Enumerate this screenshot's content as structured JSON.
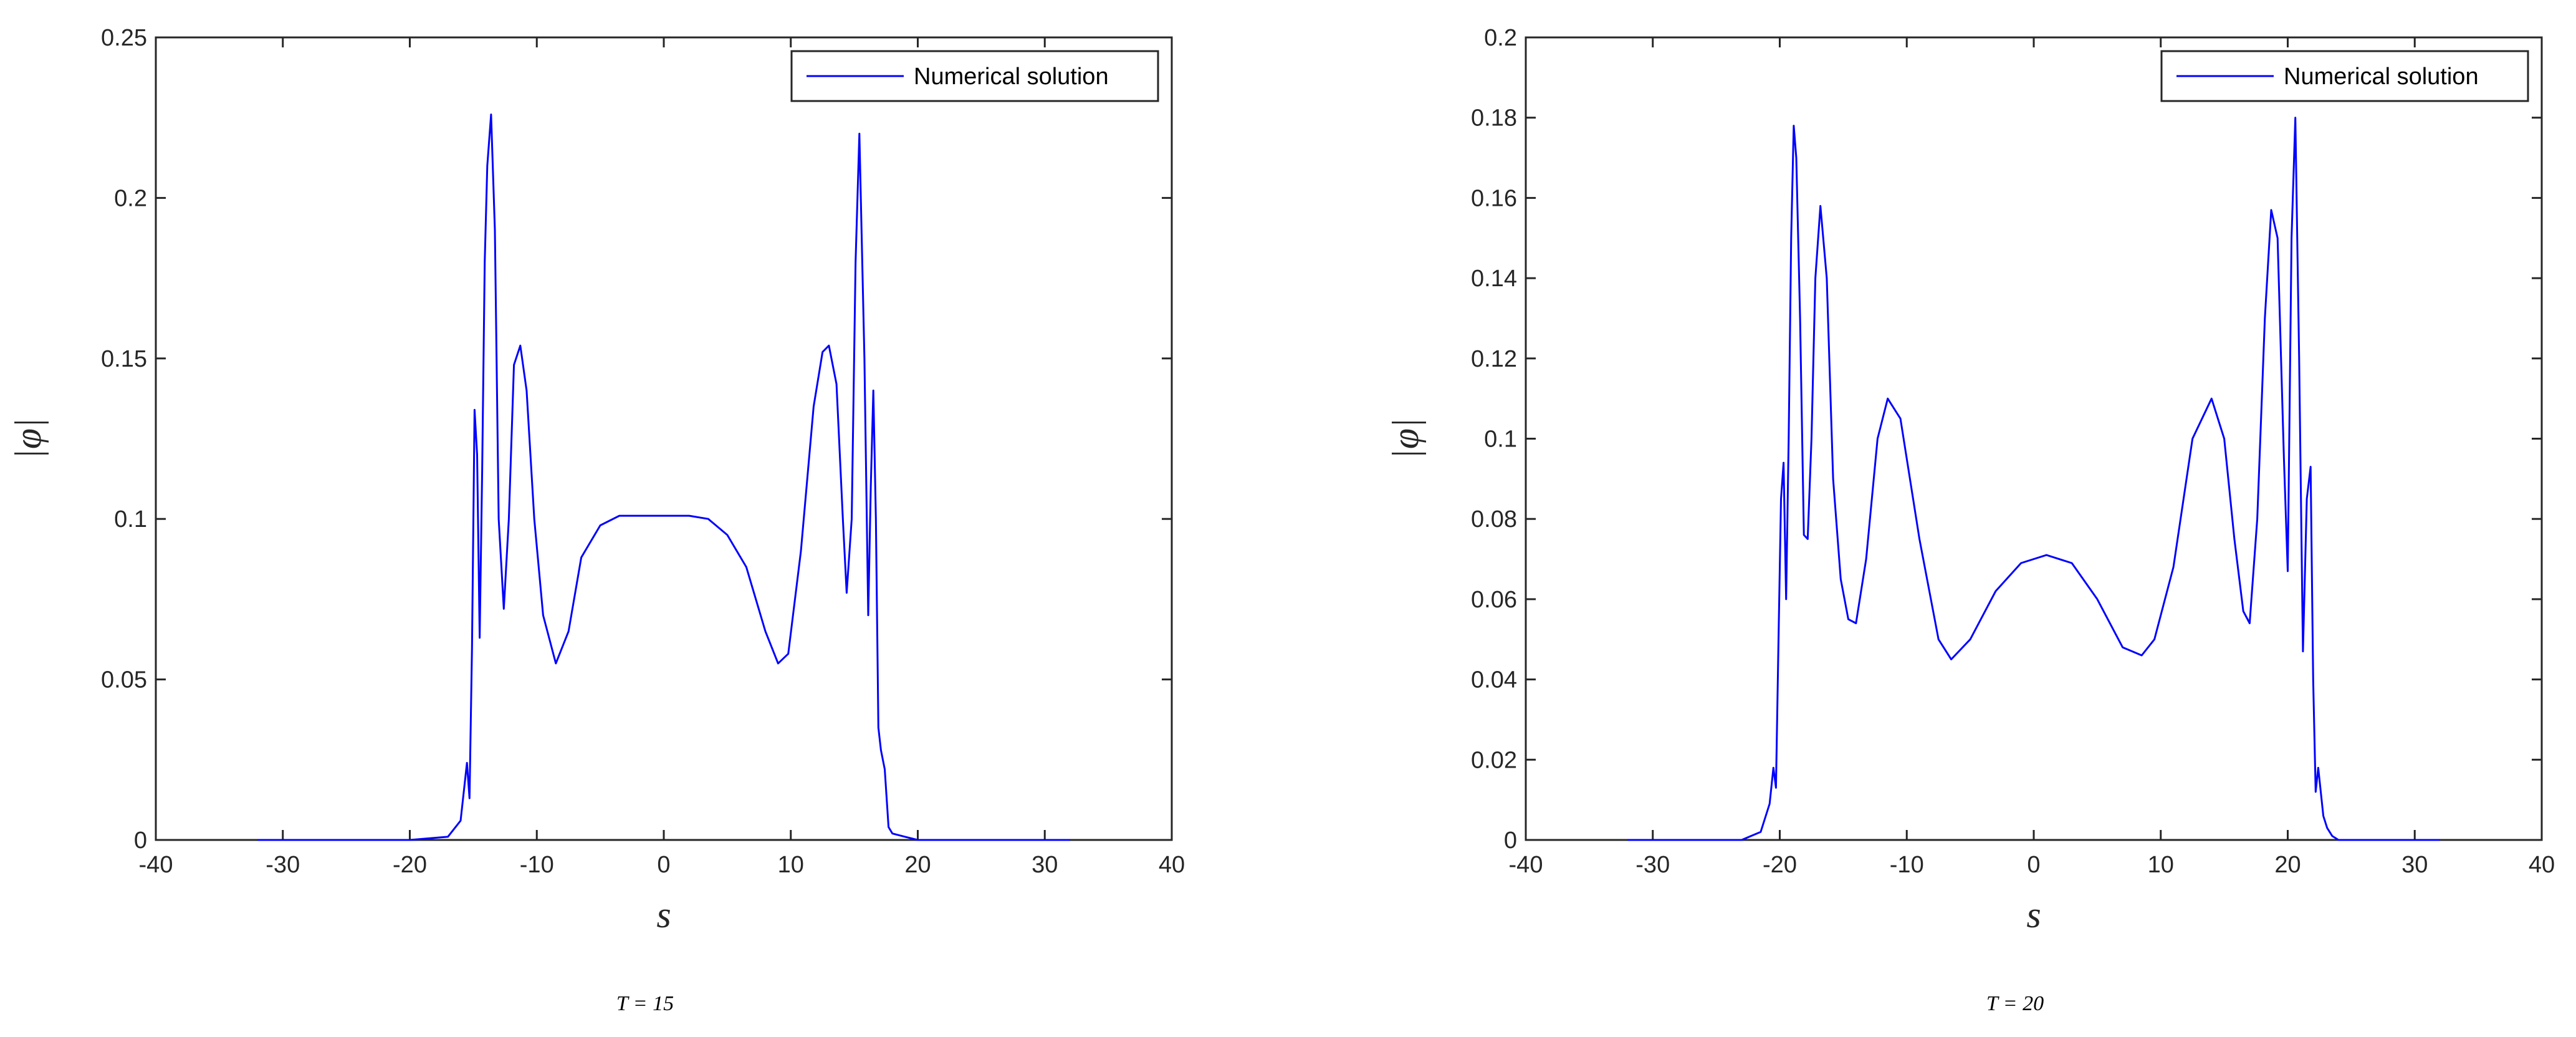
{
  "chart_data": [
    {
      "type": "line",
      "caption": "T = 15",
      "xlabel": "s",
      "ylabel": "|φ|",
      "xlim": [
        -40,
        40
      ],
      "ylim": [
        0,
        0.25
      ],
      "xticks": [
        -40,
        -30,
        -20,
        -10,
        0,
        10,
        20,
        30,
        40
      ],
      "xtick_labels": [
        "-40",
        "-30",
        "-20",
        "-10",
        "0",
        "10",
        "20",
        "30",
        "40"
      ],
      "yticks": [
        0,
        0.05,
        0.1,
        0.15,
        0.2,
        0.25
      ],
      "ytick_labels": [
        "0",
        "0.05",
        "0.1",
        "0.15",
        "0.2",
        "0.25"
      ],
      "grid": false,
      "legend_position": "top-right",
      "series": [
        {
          "name": "Numerical solution",
          "color": "#0000ff",
          "x": [
            -32,
            -20,
            -17,
            -16,
            -15.5,
            -15.3,
            -15.1,
            -14.9,
            -14.7,
            -14.5,
            -14.3,
            -14.1,
            -13.9,
            -13.6,
            -13.3,
            -13.0,
            -12.6,
            -12.2,
            -11.8,
            -11.3,
            -10.8,
            -10.2,
            -9.5,
            -8.5,
            -7.5,
            -6.5,
            -5.0,
            -3.5,
            -2.0,
            0.0,
            2.0,
            3.5,
            5.0,
            6.5,
            8.0,
            9.0,
            9.8,
            10.8,
            11.8,
            12.5,
            13.0,
            13.6,
            14.1,
            14.4,
            14.8,
            15.1,
            15.4,
            15.8,
            16.1,
            16.3,
            16.5,
            16.7,
            16.9,
            17.1,
            17.4,
            17.7,
            18.0,
            19.0,
            20.0,
            32.0
          ],
          "y": [
            0,
            0,
            0.001,
            0.006,
            0.024,
            0.013,
            0.06,
            0.134,
            0.12,
            0.063,
            0.115,
            0.18,
            0.21,
            0.226,
            0.19,
            0.1,
            0.072,
            0.1,
            0.148,
            0.154,
            0.14,
            0.1,
            0.07,
            0.055,
            0.065,
            0.088,
            0.098,
            0.101,
            0.101,
            0.101,
            0.101,
            0.1,
            0.095,
            0.085,
            0.065,
            0.055,
            0.058,
            0.09,
            0.135,
            0.152,
            0.154,
            0.142,
            0.1,
            0.077,
            0.1,
            0.18,
            0.22,
            0.15,
            0.07,
            0.11,
            0.14,
            0.1,
            0.035,
            0.028,
            0.022,
            0.004,
            0.002,
            0.001,
            0,
            0
          ]
        }
      ]
    },
    {
      "type": "line",
      "caption": "T = 20",
      "xlabel": "s",
      "ylabel": "|φ|",
      "xlim": [
        -40,
        40
      ],
      "ylim": [
        0,
        0.2
      ],
      "xticks": [
        -40,
        -30,
        -20,
        -10,
        0,
        10,
        20,
        30,
        40
      ],
      "xtick_labels": [
        "-40",
        "-30",
        "-20",
        "-10",
        "0",
        "10",
        "20",
        "30",
        "40"
      ],
      "yticks": [
        0,
        0.02,
        0.04,
        0.06,
        0.08,
        0.1,
        0.12,
        0.14,
        0.16,
        0.18,
        0.2
      ],
      "ytick_labels": [
        "0",
        "0.02",
        "0.04",
        "0.06",
        "0.08",
        "0.1",
        "0.12",
        "0.14",
        "0.16",
        "0.18",
        "0.2"
      ],
      "grid": false,
      "legend_position": "top-right",
      "series": [
        {
          "name": "Numerical solution",
          "color": "#0000ff",
          "x": [
            -32,
            -23,
            -21.5,
            -20.8,
            -20.5,
            -20.3,
            -20.1,
            -19.9,
            -19.7,
            -19.5,
            -19.3,
            -19.1,
            -18.9,
            -18.7,
            -18.4,
            -18.1,
            -17.8,
            -17.5,
            -17.2,
            -16.8,
            -16.3,
            -15.8,
            -15.2,
            -14.6,
            -14.0,
            -13.2,
            -12.3,
            -11.5,
            -10.5,
            -9.0,
            -7.5,
            -6.5,
            -5.0,
            -3.0,
            -1.0,
            1.0,
            3.0,
            5.0,
            7.0,
            8.5,
            9.5,
            11.0,
            12.5,
            14.0,
            15.0,
            15.8,
            16.5,
            17.0,
            17.6,
            18.2,
            18.7,
            19.2,
            19.7,
            20.0,
            20.3,
            20.6,
            20.9,
            21.2,
            21.5,
            21.8,
            22.0,
            22.2,
            22.4,
            22.6,
            22.8,
            23.1,
            23.5,
            24.0,
            32.0
          ],
          "y": [
            0,
            0,
            0.002,
            0.009,
            0.018,
            0.013,
            0.05,
            0.085,
            0.094,
            0.06,
            0.1,
            0.15,
            0.178,
            0.17,
            0.13,
            0.076,
            0.075,
            0.1,
            0.14,
            0.158,
            0.14,
            0.09,
            0.065,
            0.055,
            0.054,
            0.07,
            0.1,
            0.11,
            0.105,
            0.075,
            0.05,
            0.045,
            0.05,
            0.062,
            0.069,
            0.071,
            0.069,
            0.06,
            0.048,
            0.046,
            0.05,
            0.068,
            0.1,
            0.11,
            0.1,
            0.075,
            0.057,
            0.054,
            0.08,
            0.13,
            0.157,
            0.15,
            0.095,
            0.067,
            0.15,
            0.18,
            0.12,
            0.047,
            0.085,
            0.093,
            0.04,
            0.012,
            0.018,
            0.012,
            0.006,
            0.003,
            0.001,
            0,
            0
          ]
        }
      ]
    }
  ]
}
